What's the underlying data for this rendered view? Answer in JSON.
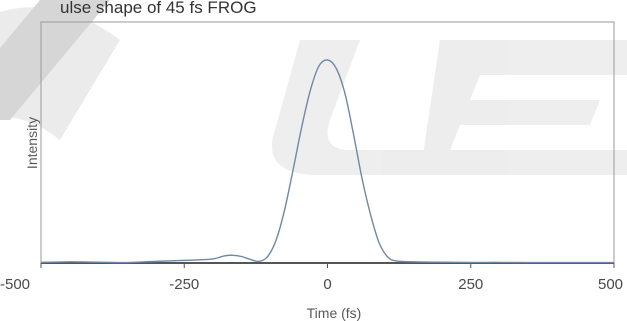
{
  "chart_data": {
    "type": "line",
    "title": "ulse shape of 45 fs FROG",
    "xlabel": "Time (fs)",
    "ylabel": "Intensity",
    "xlim": [
      -500,
      500
    ],
    "ylim": [
      0,
      1
    ],
    "xticks": [
      -500,
      -250,
      0,
      250,
      500
    ],
    "xtick_labels": [
      "-500",
      "-250",
      "0",
      "250",
      "500"
    ],
    "grid": false,
    "series": [
      {
        "color": "#6f88a6",
        "x": [
          -500,
          -450,
          -400,
          -350,
          -300,
          -260,
          -230,
          -200,
          -180,
          -165,
          -150,
          -135,
          -120,
          -105,
          -90,
          -75,
          -60,
          -45,
          -30,
          -15,
          0,
          15,
          30,
          45,
          60,
          75,
          90,
          105,
          120,
          150,
          200,
          250,
          300,
          350,
          400,
          450,
          500
        ],
        "y": [
          0.003,
          0.006,
          0.004,
          0.002,
          0.008,
          0.012,
          0.015,
          0.02,
          0.035,
          0.038,
          0.032,
          0.018,
          0.008,
          0.03,
          0.11,
          0.26,
          0.46,
          0.67,
          0.85,
          0.97,
          1.0,
          0.96,
          0.84,
          0.64,
          0.42,
          0.24,
          0.1,
          0.03,
          0.01,
          0.006,
          0.004,
          0.003,
          0.003,
          0.002,
          0.002,
          0.002,
          0.002
        ]
      }
    ]
  },
  "colors": {
    "axis": "#555555",
    "frame": "#9a9a9a",
    "line": "#6f88a6",
    "watermark": "#e6e6e6"
  }
}
